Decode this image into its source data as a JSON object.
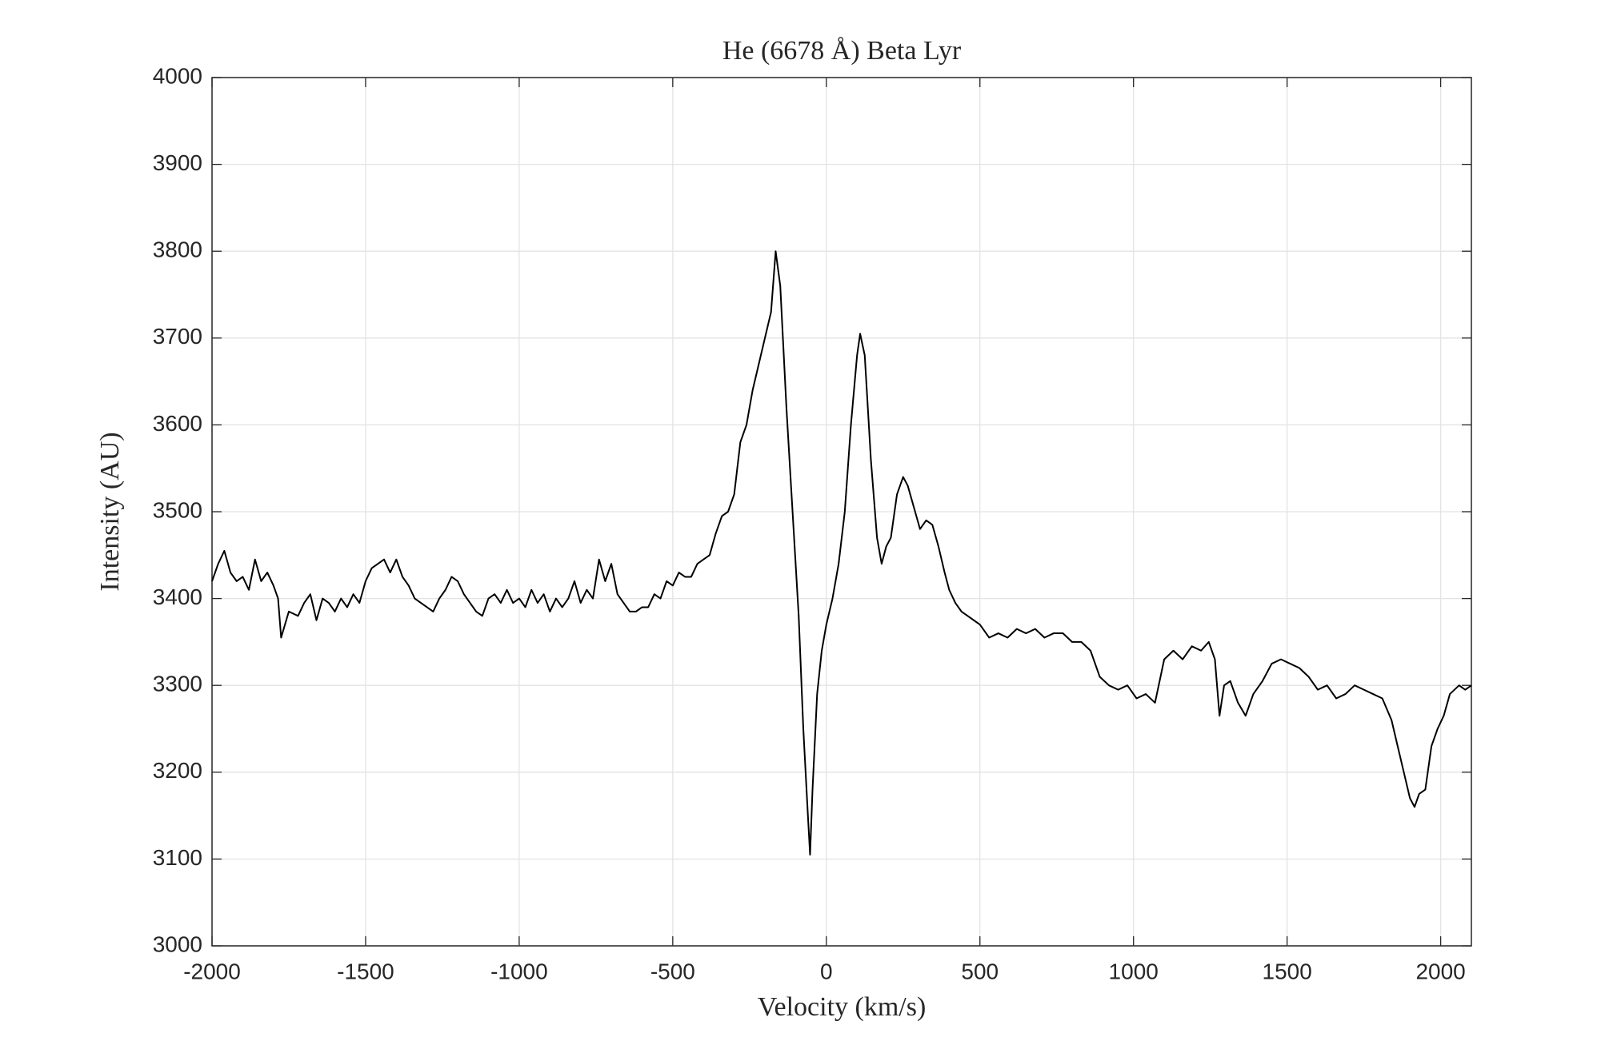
{
  "chart_data": {
    "type": "line",
    "title": "He (6678 Å) Beta Lyr",
    "x_label": "Velocity (km/s)",
    "y_label": "Intensity (AU)",
    "x": [
      -2000,
      -1980,
      -1960,
      -1940,
      -1920,
      -1900,
      -1880,
      -1860,
      -1840,
      -1820,
      -1800,
      -1785,
      -1775,
      -1750,
      -1720,
      -1700,
      -1680,
      -1660,
      -1640,
      -1620,
      -1600,
      -1580,
      -1560,
      -1540,
      -1520,
      -1500,
      -1480,
      -1460,
      -1440,
      -1420,
      -1400,
      -1380,
      -1360,
      -1340,
      -1320,
      -1300,
      -1280,
      -1260,
      -1240,
      -1220,
      -1200,
      -1180,
      -1160,
      -1140,
      -1120,
      -1100,
      -1080,
      -1060,
      -1040,
      -1020,
      -1000,
      -980,
      -960,
      -940,
      -920,
      -900,
      -880,
      -860,
      -840,
      -820,
      -800,
      -780,
      -760,
      -740,
      -720,
      -700,
      -680,
      -660,
      -640,
      -620,
      -600,
      -580,
      -560,
      -540,
      -520,
      -500,
      -480,
      -460,
      -440,
      -420,
      -400,
      -380,
      -360,
      -340,
      -320,
      -300,
      -280,
      -260,
      -240,
      -220,
      -200,
      -180,
      -165,
      -150,
      -130,
      -110,
      -90,
      -75,
      -60,
      -53,
      -45,
      -30,
      -15,
      0,
      20,
      40,
      60,
      80,
      100,
      110,
      125,
      145,
      165,
      180,
      195,
      210,
      230,
      250,
      265,
      285,
      305,
      325,
      345,
      365,
      385,
      400,
      420,
      440,
      460,
      480,
      500,
      530,
      560,
      590,
      620,
      650,
      680,
      710,
      740,
      770,
      800,
      830,
      860,
      890,
      920,
      950,
      980,
      1010,
      1040,
      1070,
      1100,
      1130,
      1160,
      1190,
      1220,
      1245,
      1265,
      1280,
      1295,
      1315,
      1340,
      1365,
      1390,
      1420,
      1450,
      1480,
      1510,
      1540,
      1570,
      1600,
      1630,
      1660,
      1690,
      1720,
      1750,
      1780,
      1810,
      1840,
      1860,
      1880,
      1900,
      1915,
      1930,
      1950,
      1970,
      1990,
      2010,
      2030,
      2060,
      2080,
      2100
    ],
    "series": [
      {
        "color": "#000000",
        "values": [
          3420,
          3440,
          3455,
          3430,
          3420,
          3425,
          3410,
          3445,
          3420,
          3430,
          3415,
          3400,
          3355,
          3385,
          3380,
          3395,
          3405,
          3375,
          3400,
          3395,
          3385,
          3400,
          3390,
          3405,
          3395,
          3420,
          3435,
          3440,
          3445,
          3430,
          3445,
          3425,
          3415,
          3400,
          3395,
          3390,
          3385,
          3400,
          3410,
          3425,
          3420,
          3405,
          3395,
          3385,
          3380,
          3400,
          3405,
          3395,
          3410,
          3395,
          3400,
          3390,
          3410,
          3395,
          3405,
          3385,
          3400,
          3390,
          3400,
          3420,
          3395,
          3410,
          3400,
          3445,
          3420,
          3440,
          3405,
          3395,
          3385,
          3385,
          3390,
          3390,
          3405,
          3400,
          3420,
          3415,
          3430,
          3425,
          3425,
          3440,
          3445,
          3450,
          3475,
          3495,
          3500,
          3520,
          3580,
          3600,
          3640,
          3670,
          3700,
          3730,
          3800,
          3760,
          3620,
          3500,
          3380,
          3250,
          3150,
          3105,
          3180,
          3290,
          3340,
          3370,
          3400,
          3440,
          3500,
          3600,
          3680,
          3705,
          3680,
          3560,
          3470,
          3440,
          3460,
          3470,
          3520,
          3540,
          3530,
          3505,
          3480,
          3490,
          3485,
          3460,
          3430,
          3410,
          3395,
          3385,
          3380,
          3375,
          3370,
          3355,
          3360,
          3355,
          3365,
          3360,
          3365,
          3355,
          3360,
          3360,
          3350,
          3350,
          3340,
          3310,
          3300,
          3295,
          3300,
          3285,
          3290,
          3280,
          3330,
          3340,
          3330,
          3345,
          3340,
          3350,
          3330,
          3265,
          3300,
          3305,
          3280,
          3265,
          3290,
          3305,
          3325,
          3330,
          3325,
          3320,
          3310,
          3295,
          3300,
          3285,
          3290,
          3300,
          3295,
          3290,
          3285,
          3260,
          3230,
          3200,
          3170,
          3160,
          3175,
          3180,
          3230,
          3250,
          3265,
          3290,
          3300,
          3295,
          3300
        ]
      }
    ],
    "xlim": [
      -2000,
      2100
    ],
    "xticks": [
      -2000,
      -1500,
      -1000,
      -500,
      0,
      500,
      1000,
      1500,
      2000
    ],
    "ylim": [
      3000,
      4000
    ],
    "yticks": [
      3000,
      3100,
      3200,
      3300,
      3400,
      3500,
      3600,
      3700,
      3800,
      3900,
      4000
    ],
    "grid": true
  }
}
